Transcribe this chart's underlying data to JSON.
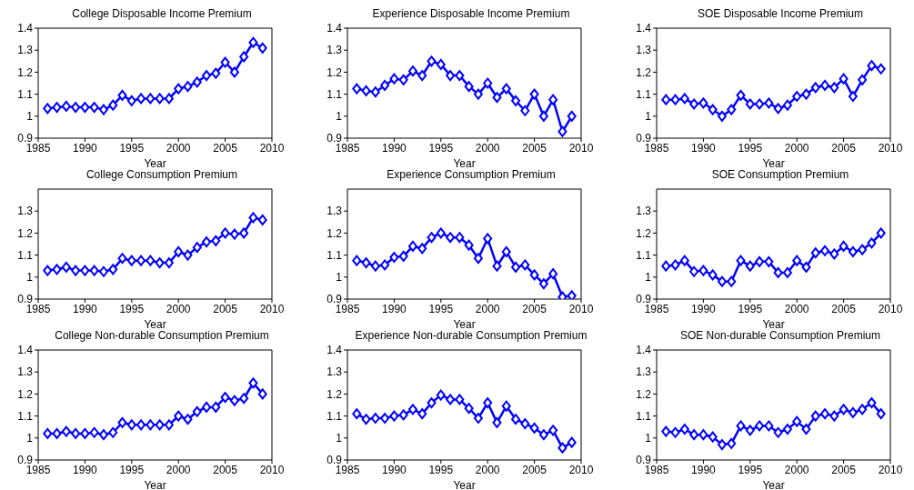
{
  "chart_data": [
    {
      "type": "line",
      "title": "College Disposable Income Premium",
      "xlabel": "Year",
      "x": [
        1986,
        1987,
        1988,
        1989,
        1990,
        1991,
        1992,
        1993,
        1994,
        1995,
        1996,
        1997,
        1998,
        1999,
        2000,
        2001,
        2002,
        2003,
        2004,
        2005,
        2006,
        2007,
        2008,
        2009
      ],
      "series": [
        {
          "color": "#0000ff",
          "values": [
            1.035,
            1.04,
            1.045,
            1.04,
            1.04,
            1.04,
            1.03,
            1.05,
            1.095,
            1.07,
            1.08,
            1.08,
            1.08,
            1.08,
            1.125,
            1.135,
            1.155,
            1.185,
            1.195,
            1.245,
            1.2,
            1.27,
            1.335,
            1.31
          ]
        }
      ],
      "xlim": [
        1985,
        2010
      ],
      "xticks": [
        1985,
        1990,
        1995,
        2000,
        2005,
        2010
      ],
      "ylim": [
        0.9,
        1.4
      ],
      "yticks": [
        0.9,
        1,
        1.1,
        1.2,
        1.3,
        1.4
      ],
      "marker": "diamond",
      "line_style": "solid"
    },
    {
      "type": "line",
      "title": "Experience Disposable Income Premium",
      "xlabel": "Year",
      "x": [
        1986,
        1987,
        1988,
        1989,
        1990,
        1991,
        1992,
        1993,
        1994,
        1995,
        1996,
        1997,
        1998,
        1999,
        2000,
        2001,
        2002,
        2003,
        2004,
        2005,
        2006,
        2007,
        2008,
        2009
      ],
      "series": [
        {
          "color": "#0000ff",
          "values": [
            1.125,
            1.115,
            1.11,
            1.14,
            1.17,
            1.165,
            1.205,
            1.185,
            1.25,
            1.235,
            1.185,
            1.185,
            1.135,
            1.1,
            1.15,
            1.085,
            1.125,
            1.07,
            1.025,
            1.1,
            1.0,
            1.075,
            0.93,
            1.0
          ]
        }
      ],
      "xlim": [
        1985,
        2010
      ],
      "xticks": [
        1985,
        1990,
        1995,
        2000,
        2005,
        2010
      ],
      "ylim": [
        0.9,
        1.4
      ],
      "yticks": [
        0.9,
        1,
        1.1,
        1.2,
        1.3,
        1.4
      ],
      "marker": "diamond",
      "line_style": "solid"
    },
    {
      "type": "line",
      "title": "SOE Disposable Income Premium",
      "xlabel": "Year",
      "x": [
        1986,
        1987,
        1988,
        1989,
        1990,
        1991,
        1992,
        1993,
        1994,
        1995,
        1996,
        1997,
        1998,
        1999,
        2000,
        2001,
        2002,
        2003,
        2004,
        2005,
        2006,
        2007,
        2008,
        2009
      ],
      "series": [
        {
          "color": "#0000ff",
          "values": [
            1.075,
            1.075,
            1.08,
            1.055,
            1.06,
            1.03,
            1.0,
            1.03,
            1.095,
            1.055,
            1.055,
            1.06,
            1.035,
            1.05,
            1.09,
            1.1,
            1.13,
            1.14,
            1.13,
            1.17,
            1.09,
            1.165,
            1.23,
            1.215
          ]
        }
      ],
      "xlim": [
        1985,
        2010
      ],
      "xticks": [
        1985,
        1990,
        1995,
        2000,
        2005,
        2010
      ],
      "ylim": [
        0.9,
        1.4
      ],
      "yticks": [
        0.9,
        1,
        1.1,
        1.2,
        1.3,
        1.4
      ],
      "marker": "diamond",
      "line_style": "solid"
    },
    {
      "type": "line",
      "title": "College Consumption Premium",
      "xlabel": "Year",
      "x": [
        1986,
        1987,
        1988,
        1989,
        1990,
        1991,
        1992,
        1993,
        1994,
        1995,
        1996,
        1997,
        1998,
        1999,
        2000,
        2001,
        2002,
        2003,
        2004,
        2005,
        2006,
        2007,
        2008,
        2009
      ],
      "series": [
        {
          "color": "#0000ff",
          "values": [
            1.03,
            1.035,
            1.045,
            1.03,
            1.03,
            1.03,
            1.025,
            1.035,
            1.085,
            1.075,
            1.075,
            1.075,
            1.065,
            1.065,
            1.115,
            1.1,
            1.135,
            1.16,
            1.165,
            1.2,
            1.195,
            1.2,
            1.27,
            1.26
          ]
        }
      ],
      "xlim": [
        1985,
        2010
      ],
      "xticks": [
        1985,
        1990,
        1995,
        2000,
        2005,
        2010
      ],
      "ylim": [
        0.9,
        1.4
      ],
      "yticks": [
        0.9,
        1,
        1.1,
        1.2,
        1.3
      ],
      "marker": "diamond",
      "line_style": "solid"
    },
    {
      "type": "line",
      "title": "Experience Consumption Premium",
      "xlabel": "Year",
      "x": [
        1986,
        1987,
        1988,
        1989,
        1990,
        1991,
        1992,
        1993,
        1994,
        1995,
        1996,
        1997,
        1998,
        1999,
        2000,
        2001,
        2002,
        2003,
        2004,
        2005,
        2006,
        2007,
        2008,
        2009
      ],
      "series": [
        {
          "color": "#0000ff",
          "values": [
            1.075,
            1.065,
            1.05,
            1.055,
            1.09,
            1.095,
            1.14,
            1.13,
            1.18,
            1.2,
            1.18,
            1.18,
            1.145,
            1.085,
            1.175,
            1.05,
            1.115,
            1.045,
            1.055,
            1.01,
            0.97,
            1.015,
            0.91,
            0.915
          ]
        }
      ],
      "xlim": [
        1985,
        2010
      ],
      "xticks": [
        1985,
        1990,
        1995,
        2000,
        2005,
        2010
      ],
      "ylim": [
        0.9,
        1.4
      ],
      "yticks": [
        0.9,
        1,
        1.1,
        1.2,
        1.3
      ],
      "marker": "diamond",
      "line_style": "solid"
    },
    {
      "type": "line",
      "title": "SOE Consumption Premium",
      "xlabel": "Year",
      "x": [
        1986,
        1987,
        1988,
        1989,
        1990,
        1991,
        1992,
        1993,
        1994,
        1995,
        1996,
        1997,
        1998,
        1999,
        2000,
        2001,
        2002,
        2003,
        2004,
        2005,
        2006,
        2007,
        2008,
        2009
      ],
      "series": [
        {
          "color": "#0000ff",
          "values": [
            1.05,
            1.055,
            1.075,
            1.025,
            1.03,
            1.01,
            0.98,
            0.98,
            1.075,
            1.05,
            1.07,
            1.07,
            1.02,
            1.02,
            1.075,
            1.045,
            1.11,
            1.12,
            1.105,
            1.14,
            1.115,
            1.125,
            1.155,
            1.2
          ]
        }
      ],
      "xlim": [
        1985,
        2010
      ],
      "xticks": [
        1985,
        1990,
        1995,
        2000,
        2005,
        2010
      ],
      "ylim": [
        0.9,
        1.4
      ],
      "yticks": [
        0.9,
        1,
        1.1,
        1.2,
        1.3
      ],
      "marker": "diamond",
      "line_style": "solid"
    },
    {
      "type": "line",
      "title": "College Non-durable Consumption Premium",
      "xlabel": "Year",
      "x": [
        1986,
        1987,
        1988,
        1989,
        1990,
        1991,
        1992,
        1993,
        1994,
        1995,
        1996,
        1997,
        1998,
        1999,
        2000,
        2001,
        2002,
        2003,
        2004,
        2005,
        2006,
        2007,
        2008,
        2009
      ],
      "series": [
        {
          "color": "#0000ff",
          "values": [
            1.02,
            1.02,
            1.03,
            1.02,
            1.02,
            1.025,
            1.015,
            1.025,
            1.07,
            1.06,
            1.06,
            1.06,
            1.06,
            1.06,
            1.1,
            1.085,
            1.12,
            1.14,
            1.14,
            1.185,
            1.17,
            1.18,
            1.25,
            1.2
          ]
        }
      ],
      "xlim": [
        1985,
        2010
      ],
      "xticks": [
        1985,
        1990,
        1995,
        2000,
        2005,
        2010
      ],
      "ylim": [
        0.9,
        1.4
      ],
      "yticks": [
        0.9,
        1,
        1.1,
        1.2,
        1.3,
        1.4
      ],
      "marker": "diamond",
      "line_style": "solid"
    },
    {
      "type": "line",
      "title": "Experience Non-durable Consumption Premium",
      "xlabel": "Year",
      "x": [
        1986,
        1987,
        1988,
        1989,
        1990,
        1991,
        1992,
        1993,
        1994,
        1995,
        1996,
        1997,
        1998,
        1999,
        2000,
        2001,
        2002,
        2003,
        2004,
        2005,
        2006,
        2007,
        2008,
        2009
      ],
      "series": [
        {
          "color": "#0000ff",
          "values": [
            1.11,
            1.085,
            1.09,
            1.09,
            1.1,
            1.105,
            1.13,
            1.11,
            1.16,
            1.195,
            1.175,
            1.175,
            1.135,
            1.09,
            1.16,
            1.07,
            1.145,
            1.085,
            1.065,
            1.045,
            1.015,
            1.035,
            0.955,
            0.98
          ]
        }
      ],
      "xlim": [
        1985,
        2010
      ],
      "xticks": [
        1985,
        1990,
        1995,
        2000,
        2005,
        2010
      ],
      "ylim": [
        0.9,
        1.4
      ],
      "yticks": [
        0.9,
        1,
        1.1,
        1.2,
        1.3,
        1.4
      ],
      "marker": "diamond",
      "line_style": "solid"
    },
    {
      "type": "line",
      "title": "SOE Non-durable Consumption Premium",
      "xlabel": "Year",
      "x": [
        1986,
        1987,
        1988,
        1989,
        1990,
        1991,
        1992,
        1993,
        1994,
        1995,
        1996,
        1997,
        1998,
        1999,
        2000,
        2001,
        2002,
        2003,
        2004,
        2005,
        2006,
        2007,
        2008,
        2009
      ],
      "series": [
        {
          "color": "#0000ff",
          "values": [
            1.03,
            1.025,
            1.04,
            1.015,
            1.015,
            1.005,
            0.97,
            0.975,
            1.055,
            1.035,
            1.055,
            1.055,
            1.025,
            1.04,
            1.075,
            1.04,
            1.1,
            1.11,
            1.1,
            1.13,
            1.115,
            1.13,
            1.16,
            1.11
          ]
        }
      ],
      "xlim": [
        1985,
        2010
      ],
      "xticks": [
        1985,
        1990,
        1995,
        2000,
        2005,
        2010
      ],
      "ylim": [
        0.9,
        1.4
      ],
      "yticks": [
        0.9,
        1,
        1.1,
        1.2,
        1.3,
        1.4
      ],
      "marker": "diamond",
      "line_style": "solid"
    }
  ]
}
